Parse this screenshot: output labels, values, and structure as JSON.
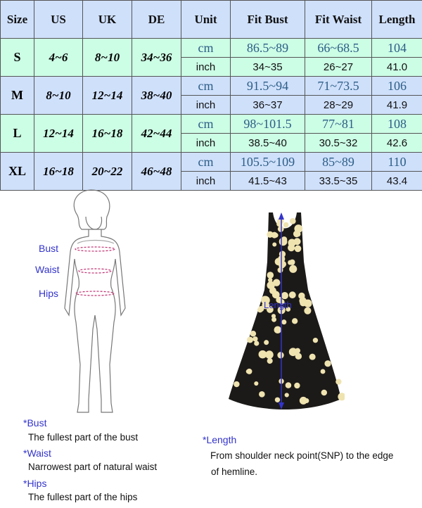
{
  "table": {
    "headers": [
      "Size",
      "US",
      "UK",
      "DE",
      "Unit",
      "Fit Bust",
      "Fit Waist",
      "Length"
    ],
    "rows": [
      {
        "size": "S",
        "us": "4~6",
        "uk": "8~10",
        "de": "34~36",
        "cm": {
          "unit": "cm",
          "bust": "86.5~89",
          "waist": "66~68.5",
          "length": "104"
        },
        "inch": {
          "unit": "inch",
          "bust": "34~35",
          "waist": "26~27",
          "length": "41.0"
        }
      },
      {
        "size": "M",
        "us": "8~10",
        "uk": "12~14",
        "de": "38~40",
        "cm": {
          "unit": "cm",
          "bust": "91.5~94",
          "waist": "71~73.5",
          "length": "106"
        },
        "inch": {
          "unit": "inch",
          "bust": "36~37",
          "waist": "28~29",
          "length": "41.9"
        }
      },
      {
        "size": "L",
        "us": "12~14",
        "uk": "16~18",
        "de": "42~44",
        "cm": {
          "unit": "cm",
          "bust": "98~101.5",
          "waist": "77~81",
          "length": "108"
        },
        "inch": {
          "unit": "inch",
          "bust": "38.5~40",
          "waist": "30.5~32",
          "length": "42.6"
        }
      },
      {
        "size": "XL",
        "us": "16~18",
        "uk": "20~22",
        "de": "46~48",
        "cm": {
          "unit": "cm",
          "bust": "105.5~109",
          "waist": "85~89",
          "length": "110"
        },
        "inch": {
          "unit": "inch",
          "bust": "41.5~43",
          "waist": "33.5~35",
          "length": "43.4"
        }
      }
    ]
  },
  "colors": {
    "header": "#cfe0fb",
    "mint": "#ccfde5",
    "label_blue": "#3333cc",
    "cm_text": "#2c5d86"
  },
  "figure": {
    "labels": {
      "bust": "Bust",
      "waist": "Waist",
      "hips": "Hips"
    }
  },
  "dress": {
    "label": "Length"
  },
  "notes": {
    "bust_title": "*Bust",
    "bust_desc": "The fullest part of the bust",
    "waist_title": "*Waist",
    "waist_desc": "Narrowest part of natural waist",
    "hips_title": "*Hips",
    "hips_desc": "The fullest part of the hips",
    "length_title": "*Length",
    "length_desc_1": "From shoulder neck point(SNP) to the edge",
    "length_desc_2": "of hemline."
  }
}
